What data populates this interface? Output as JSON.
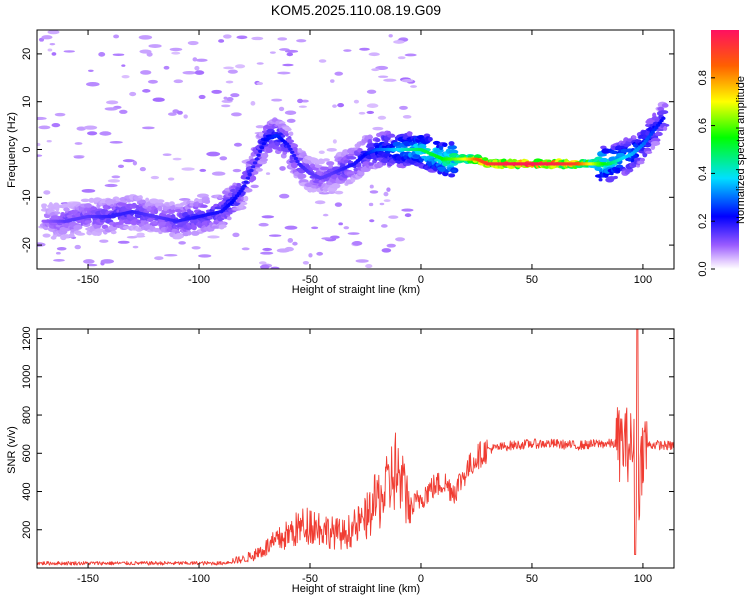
{
  "title": "KOM5.2025.110.08.19.G09",
  "chart_data": [
    {
      "type": "heatmap",
      "xlabel": "Height of straight line (km)",
      "ylabel": "Frequency (Hz)",
      "xlim": [
        -173,
        114
      ],
      "ylim": [
        -25,
        25
      ],
      "xticks": [
        -150,
        -100,
        -50,
        0,
        50,
        100
      ],
      "yticks": [
        -20,
        -10,
        0,
        10,
        20
      ],
      "colorbar": {
        "label": "Normalized spectral amplitude",
        "range": [
          0,
          1
        ],
        "ticks": [
          0.0,
          0.2,
          0.4,
          0.6,
          0.8
        ],
        "tick_labels": [
          "0.0",
          "0.2",
          "0.4",
          "0.6",
          "0.8"
        ],
        "colormap": "rainbow"
      },
      "ridge": {
        "x": [
          -170,
          -160,
          -150,
          -140,
          -130,
          -120,
          -110,
          -100,
          -90,
          -85,
          -80,
          -75,
          -70,
          -65,
          -60,
          -55,
          -50,
          -45,
          -40,
          -35,
          -30,
          -25,
          -20,
          -15,
          -10,
          -5,
          0,
          5,
          10,
          15,
          20,
          25,
          30,
          40,
          50,
          60,
          70,
          80,
          85,
          90,
          95,
          100,
          105,
          110
        ],
        "freq": [
          -15,
          -15,
          -14,
          -14,
          -13,
          -14,
          -15,
          -14,
          -13,
          -11,
          -8,
          -3,
          2,
          3,
          1,
          -3,
          -5,
          -6,
          -5,
          -4,
          -3,
          -1,
          0,
          0,
          0,
          0,
          0,
          -1,
          -2,
          -2,
          -2,
          -2,
          -3,
          -3,
          -3,
          -3,
          -3,
          -3,
          -3,
          -2,
          -1,
          1,
          4,
          7
        ],
        "amplitude": [
          0.1,
          0.15,
          0.15,
          0.18,
          0.18,
          0.15,
          0.18,
          0.2,
          0.2,
          0.22,
          0.2,
          0.18,
          0.22,
          0.25,
          0.2,
          0.18,
          0.15,
          0.15,
          0.15,
          0.18,
          0.2,
          0.22,
          0.28,
          0.32,
          0.38,
          0.45,
          0.5,
          0.52,
          0.55,
          0.6,
          0.7,
          0.85,
          0.92,
          0.98,
          0.98,
          0.96,
          0.9,
          0.6,
          0.5,
          0.4,
          0.35,
          0.3,
          0.25,
          0.2
        ]
      }
    },
    {
      "type": "line",
      "xlabel": "Height of straight line (km)",
      "ylabel": "SNR (v/v)",
      "xlim": [
        -173,
        114
      ],
      "ylim": [
        0,
        1250
      ],
      "xticks": [
        -150,
        -100,
        -50,
        0,
        50,
        100
      ],
      "yticks": [
        200,
        400,
        600,
        800,
        1000,
        1200
      ],
      "color": "#f03c32",
      "x": [
        -173,
        -150,
        -125,
        -100,
        -90,
        -80,
        -75,
        -70,
        -65,
        -60,
        -55,
        -50,
        -45,
        -40,
        -35,
        -30,
        -25,
        -20,
        -15,
        -12,
        -10,
        -8,
        -5,
        0,
        5,
        10,
        15,
        20,
        25,
        30,
        35,
        40,
        50,
        60,
        70,
        80,
        85,
        90,
        94,
        96,
        98,
        100,
        105,
        110,
        114
      ],
      "y": [
        25,
        25,
        25,
        25,
        25,
        40,
        60,
        90,
        120,
        150,
        180,
        200,
        180,
        160,
        150,
        180,
        220,
        300,
        350,
        450,
        400,
        350,
        300,
        370,
        420,
        450,
        400,
        500,
        580,
        620,
        630,
        640,
        650,
        650,
        640,
        650,
        650,
        650,
        650,
        600,
        400,
        640,
        645,
        640,
        640
      ]
    }
  ]
}
